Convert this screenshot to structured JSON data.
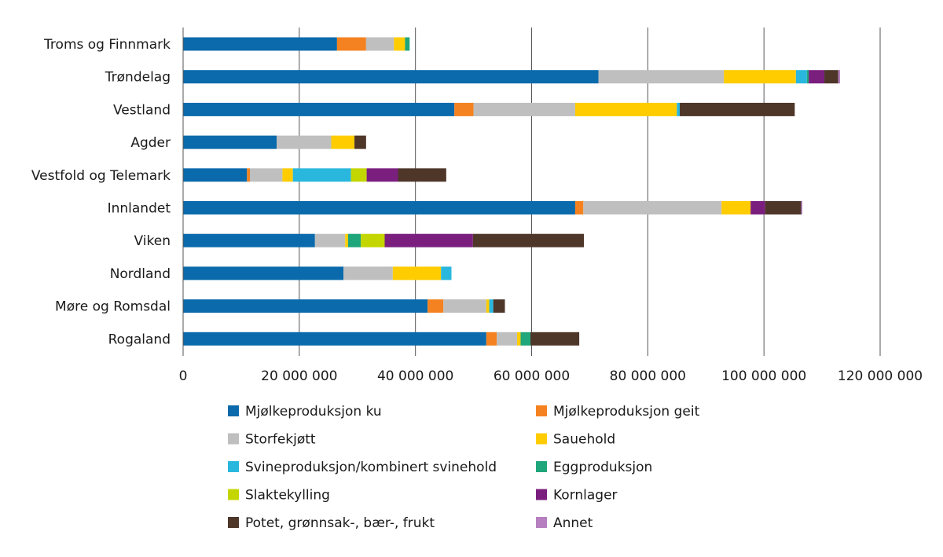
{
  "chart_data": {
    "type": "bar",
    "orientation": "horizontal",
    "stacked": true,
    "title": "",
    "xlabel": "",
    "ylabel": "",
    "xlim": [
      0,
      120000000
    ],
    "x_ticks": [
      0,
      20000000,
      40000000,
      60000000,
      80000000,
      100000000,
      120000000
    ],
    "x_tick_labels": [
      "0",
      "20 000 000",
      "40 000 000",
      "60 000 000",
      "80 000 000",
      "100 000 000",
      "120 000 000"
    ],
    "grid": "vertical",
    "legend_position": "bottom",
    "categories": [
      "Troms og Finnmark",
      "Trøndelag",
      "Vestland",
      "Agder",
      "Vestfold og Telemark",
      "Innlandet",
      "Viken",
      "Nordland",
      "Møre og Romsdal",
      "Rogaland"
    ],
    "series": [
      {
        "name": "Mjølkeproduksjon ku",
        "color": "#0a6aab",
        "values": [
          26500000,
          71500000,
          46700000,
          16100000,
          11000000,
          67500000,
          22700000,
          27600000,
          42100000,
          52200000
        ]
      },
      {
        "name": "Mjølkeproduksjon geit",
        "color": "#f58220",
        "values": [
          5000000,
          0,
          3300000,
          0,
          500000,
          1400000,
          0,
          0,
          2700000,
          1800000
        ]
      },
      {
        "name": "Storfekjøtt",
        "color": "#bfbfbf",
        "values": [
          4800000,
          21600000,
          17500000,
          9400000,
          5600000,
          23800000,
          5200000,
          8500000,
          7400000,
          3500000
        ]
      },
      {
        "name": "Sauehold",
        "color": "#ffcc00",
        "values": [
          1900000,
          12400000,
          17500000,
          4000000,
          1800000,
          5000000,
          500000,
          8300000,
          500000,
          600000
        ]
      },
      {
        "name": "Svineproduksjon/kombinert svinehold",
        "color": "#29b7de",
        "values": [
          0,
          1900000,
          500000,
          0,
          10000000,
          0,
          0,
          1800000,
          700000,
          0
        ]
      },
      {
        "name": "Eggproduksjon",
        "color": "#1fa67a",
        "values": [
          800000,
          300000,
          0,
          0,
          0,
          0,
          2200000,
          0,
          0,
          1700000
        ]
      },
      {
        "name": "Slaktekylling",
        "color": "#c4d600",
        "values": [
          0,
          0,
          0,
          0,
          2700000,
          0,
          4100000,
          0,
          0,
          0
        ]
      },
      {
        "name": "Kornlager",
        "color": "#7b1f7f",
        "values": [
          0,
          2700000,
          0,
          0,
          5400000,
          2500000,
          15200000,
          0,
          0,
          0
        ]
      },
      {
        "name": "Potet, grønnsak-, bær-, frukt",
        "color": "#4e3629",
        "values": [
          0,
          2400000,
          19800000,
          2000000,
          8300000,
          6200000,
          19100000,
          0,
          2000000,
          8400000
        ]
      },
      {
        "name": "Annet",
        "color": "#b57fc0",
        "values": [
          0,
          300000,
          0,
          0,
          0,
          200000,
          0,
          0,
          0,
          0
        ]
      }
    ]
  }
}
